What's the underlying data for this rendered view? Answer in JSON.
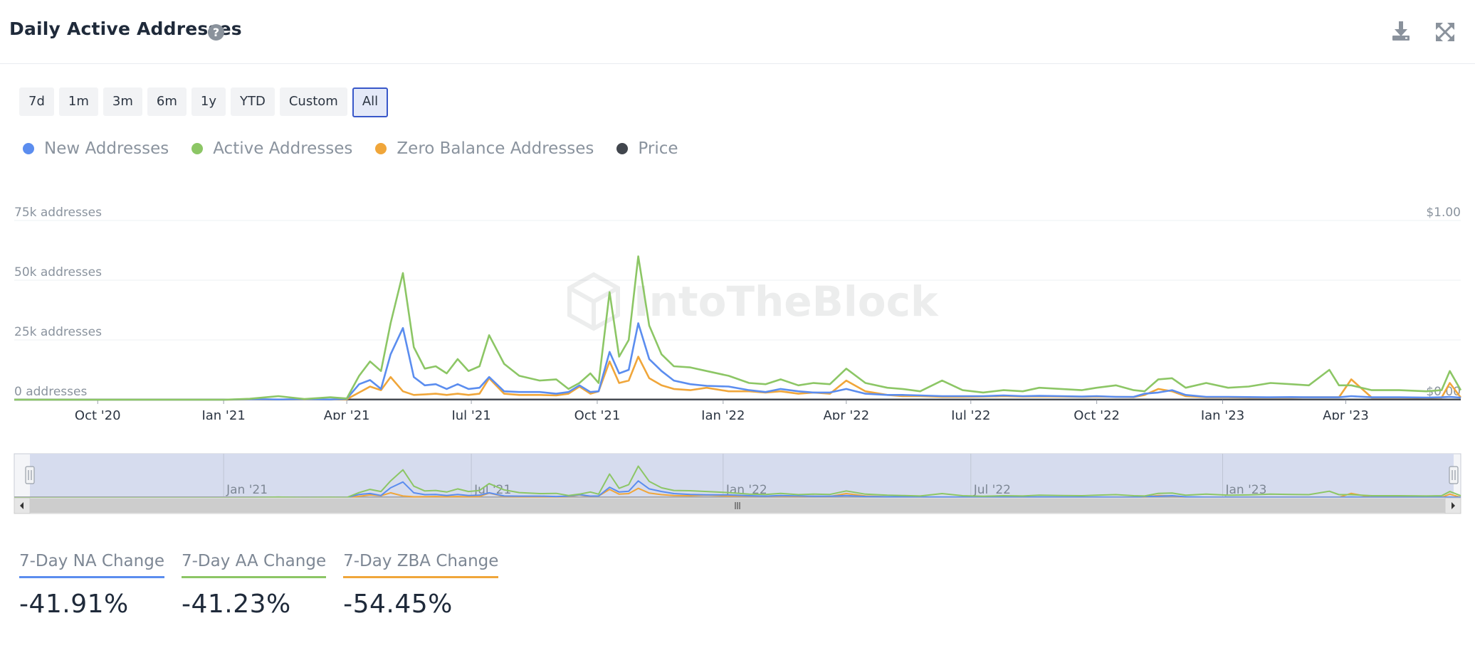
{
  "header": {
    "title": "Daily Active Addresses",
    "help_glyph": "?",
    "download_icon": "download-icon",
    "expand_icon": "expand-icon"
  },
  "range_buttons": [
    {
      "label": "7d",
      "active": false
    },
    {
      "label": "1m",
      "active": false
    },
    {
      "label": "3m",
      "active": false
    },
    {
      "label": "6m",
      "active": false
    },
    {
      "label": "1y",
      "active": false
    },
    {
      "label": "YTD",
      "active": false
    },
    {
      "label": "Custom",
      "active": false
    },
    {
      "label": "All",
      "active": true
    }
  ],
  "colors": {
    "new": "#5b8def",
    "active": "#8cc665",
    "zero": "#f0a63a",
    "price": "#41464d",
    "grid": "#eef0f3",
    "navigator_mask": "#d6dcee",
    "accent": "#3857c9"
  },
  "watermark": "IntoTheBlock",
  "chart_data": {
    "type": "line",
    "y_axis": {
      "ticks": [
        "0 addresses",
        "25k addresses",
        "50k addresses",
        "75k addresses"
      ],
      "tick_values": [
        0,
        25000,
        50000,
        75000
      ],
      "ylim": [
        0,
        75000
      ]
    },
    "y2_axis": {
      "ticks": [
        "$0.00",
        "$1.00"
      ],
      "ylim": [
        0,
        1
      ]
    },
    "x_axis": {
      "range": [
        "2020-08-01",
        "2023-06-24"
      ],
      "ticks": [
        "Oct '20",
        "Jan '21",
        "Apr '21",
        "Jul '21",
        "Oct '21",
        "Jan '22",
        "Apr '22",
        "Jul '22",
        "Oct '22",
        "Jan '23",
        "Apr '23"
      ],
      "tick_dates": [
        "2020-10-01",
        "2021-01-01",
        "2021-04-01",
        "2021-07-01",
        "2021-10-01",
        "2022-01-01",
        "2022-04-01",
        "2022-07-01",
        "2022-10-01",
        "2023-01-01",
        "2023-04-01"
      ]
    },
    "grid": true,
    "legend": "top-left",
    "dates": [
      "2020-08-01",
      "2021-01-01",
      "2021-01-20",
      "2021-02-10",
      "2021-03-01",
      "2021-03-20",
      "2021-04-01",
      "2021-04-10",
      "2021-04-18",
      "2021-04-26",
      "2021-05-03",
      "2021-05-12",
      "2021-05-20",
      "2021-05-28",
      "2021-06-05",
      "2021-06-13",
      "2021-06-21",
      "2021-06-29",
      "2021-07-07",
      "2021-07-14",
      "2021-07-25",
      "2021-08-05",
      "2021-08-20",
      "2021-09-01",
      "2021-09-10",
      "2021-09-18",
      "2021-09-26",
      "2021-10-02",
      "2021-10-10",
      "2021-10-17",
      "2021-10-24",
      "2021-10-31",
      "2021-11-08",
      "2021-11-17",
      "2021-11-26",
      "2021-12-08",
      "2021-12-20",
      "2022-01-05",
      "2022-01-20",
      "2022-02-01",
      "2022-02-12",
      "2022-02-25",
      "2022-03-08",
      "2022-03-20",
      "2022-04-01",
      "2022-04-15",
      "2022-05-01",
      "2022-05-12",
      "2022-05-25",
      "2022-06-10",
      "2022-06-25",
      "2022-07-10",
      "2022-07-25",
      "2022-08-08",
      "2022-08-20",
      "2022-09-05",
      "2022-09-20",
      "2022-10-01",
      "2022-10-15",
      "2022-10-28",
      "2022-11-05",
      "2022-11-15",
      "2022-11-25",
      "2022-12-05",
      "2022-12-20",
      "2023-01-05",
      "2023-01-20",
      "2023-02-05",
      "2023-02-20",
      "2023-03-05",
      "2023-03-20",
      "2023-03-27",
      "2023-04-05",
      "2023-04-20",
      "2023-05-10",
      "2023-05-30",
      "2023-06-10",
      "2023-06-16",
      "2023-06-24"
    ],
    "series": [
      {
        "name": "New Addresses",
        "key": "new",
        "values": [
          0,
          0,
          200,
          100,
          200,
          100,
          400,
          6500,
          8200,
          4500,
          19000,
          30000,
          9500,
          6000,
          6500,
          4500,
          6500,
          4500,
          5000,
          9500,
          3500,
          3200,
          3200,
          2500,
          3200,
          6000,
          3200,
          3500,
          20000,
          11000,
          12500,
          32000,
          17000,
          12000,
          8000,
          6500,
          5800,
          5500,
          4000,
          3200,
          4500,
          3500,
          3000,
          3000,
          4500,
          2500,
          2000,
          2000,
          1800,
          1500,
          1500,
          1500,
          1800,
          1500,
          1600,
          1500,
          1300,
          1500,
          1200,
          1200,
          2500,
          3000,
          4000,
          2000,
          1200,
          1200,
          1100,
          1000,
          1100,
          1000,
          1000,
          1000,
          1500,
          1000,
          1000,
          900,
          1000,
          1200,
          900
        ]
      },
      {
        "name": "Active Addresses",
        "key": "active",
        "values": [
          0,
          0,
          400,
          1500,
          300,
          1000,
          500,
          10000,
          16000,
          12000,
          32000,
          53000,
          22000,
          13000,
          14000,
          11000,
          17000,
          12000,
          14000,
          27000,
          15000,
          10000,
          8000,
          8500,
          4500,
          7000,
          11000,
          7000,
          45000,
          18000,
          25000,
          60000,
          31000,
          19000,
          14000,
          13500,
          12000,
          10000,
          7000,
          6500,
          8500,
          6000,
          7000,
          6500,
          13000,
          7000,
          5000,
          4500,
          3500,
          8000,
          4000,
          3000,
          4000,
          3500,
          5000,
          4500,
          4000,
          5000,
          6000,
          4000,
          3500,
          8500,
          9000,
          5000,
          7000,
          5000,
          5500,
          7000,
          6500,
          6000,
          12500,
          6000,
          6000,
          4000,
          4000,
          3500,
          4000,
          12000,
          4000
        ]
      },
      {
        "name": "Zero Balance Addresses",
        "key": "zero",
        "values": [
          0,
          0,
          100,
          50,
          100,
          50,
          200,
          3000,
          5500,
          4000,
          9500,
          3500,
          2000,
          2200,
          2500,
          2000,
          2500,
          2000,
          2500,
          9000,
          2500,
          2000,
          2000,
          1800,
          2500,
          5500,
          2500,
          3500,
          16000,
          7000,
          8000,
          18000,
          9000,
          6000,
          4500,
          4000,
          5000,
          3500,
          3500,
          3000,
          3500,
          2500,
          3000,
          2500,
          8000,
          3500,
          2000,
          1500,
          1500,
          1200,
          1200,
          1300,
          1500,
          1300,
          1400,
          1300,
          1200,
          1300,
          1200,
          1100,
          2000,
          4500,
          3500,
          1500,
          1000,
          1000,
          900,
          900,
          900,
          1000,
          1000,
          1000,
          8500,
          900,
          900,
          800,
          900,
          7000,
          900
        ]
      },
      {
        "name": "Price",
        "key": "price",
        "values": [
          0.002,
          0.002,
          0.002,
          0.002,
          0.002,
          0.002,
          0.002,
          0.002,
          0.002,
          0.002,
          0.002,
          0.002,
          0.002,
          0.002,
          0.002,
          0.002,
          0.002,
          0.002,
          0.002,
          0.002,
          0.002,
          0.002,
          0.002,
          0.002,
          0.002,
          0.002,
          0.002,
          0.002,
          0.002,
          0.002,
          0.002,
          0.002,
          0.002,
          0.002,
          0.002,
          0.002,
          0.002,
          0.002,
          0.002,
          0.002,
          0.002,
          0.002,
          0.002,
          0.002,
          0.002,
          0.002,
          0.002,
          0.002,
          0.002,
          0.002,
          0.002,
          0.002,
          0.002,
          0.002,
          0.002,
          0.002,
          0.002,
          0.002,
          0.002,
          0.002,
          0.002,
          0.002,
          0.002,
          0.002,
          0.002,
          0.002,
          0.002,
          0.002,
          0.002,
          0.002,
          0.002,
          0.002,
          0.002,
          0.002,
          0.002,
          0.002,
          0.002,
          0.002,
          0.002
        ]
      }
    ],
    "navigator": {
      "ticks": [
        "Jan '21",
        "Jul '21",
        "Jan '22",
        "Jul '22",
        "Jan '23"
      ],
      "tick_dates": [
        "2021-01-01",
        "2021-07-01",
        "2022-01-01",
        "2022-07-01",
        "2023-01-01"
      ],
      "selection": [
        "2020-08-01",
        "2023-06-24"
      ]
    }
  },
  "stats": [
    {
      "label": "7-Day NA Change",
      "value": "-41.91%",
      "color_key": "new"
    },
    {
      "label": "7-Day AA Change",
      "value": "-41.23%",
      "color_key": "active"
    },
    {
      "label": "7-Day ZBA Change",
      "value": "-54.45%",
      "color_key": "zero"
    }
  ]
}
